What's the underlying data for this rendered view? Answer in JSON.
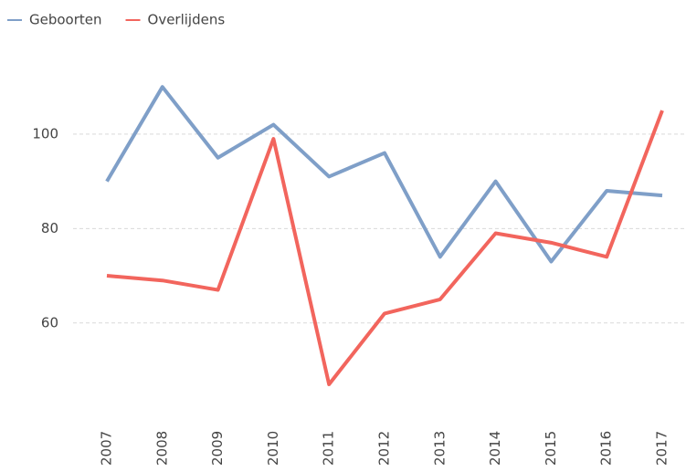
{
  "chart_data": {
    "type": "line",
    "categories": [
      "2007",
      "2008",
      "2009",
      "2010",
      "2011",
      "2012",
      "2013",
      "2014",
      "2015",
      "2016",
      "2017"
    ],
    "series": [
      {
        "name": "Geboorten",
        "color": "#7f9fc8",
        "values": [
          90,
          110,
          95,
          102,
          91,
          96,
          74,
          90,
          73,
          88,
          87
        ]
      },
      {
        "name": "Overlijdens",
        "color": "#f2655d",
        "values": [
          70,
          69,
          67,
          99,
          47,
          62,
          65,
          79,
          77,
          74,
          105
        ]
      }
    ],
    "ylim": [
      41,
      117
    ],
    "yticks": [
      60,
      80,
      100
    ],
    "grid": true,
    "legend": "top-left"
  }
}
